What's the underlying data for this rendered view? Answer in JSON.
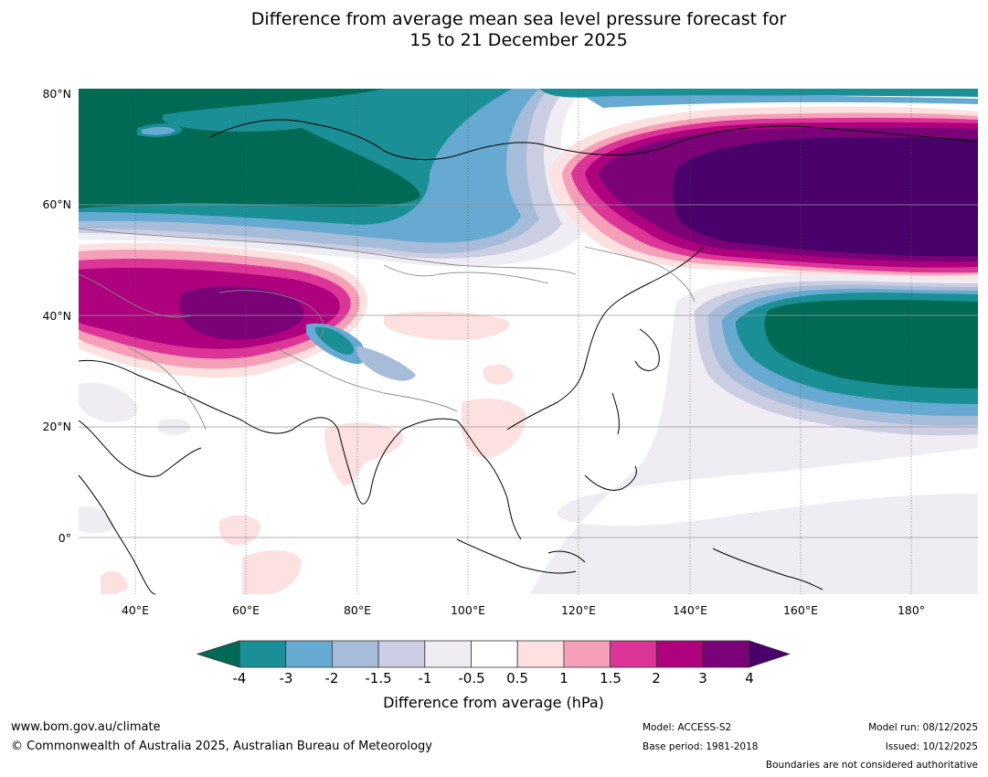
{
  "title": {
    "line1": "Difference from average mean sea level pressure forecast for",
    "line2": "15 to 21 December 2025"
  },
  "map": {
    "lat_labels": [
      "80°N",
      "60°N",
      "40°N",
      "20°N",
      "0°"
    ],
    "lon_labels": [
      "40°E",
      "60°E",
      "80°E",
      "100°E",
      "120°E",
      "140°E",
      "160°E",
      "180°"
    ],
    "lon_range": [
      30,
      192
    ],
    "lat_range": [
      -10,
      80
    ]
  },
  "colorbar": {
    "ticks": [
      "-4",
      "-3",
      "-2",
      "-1.5",
      "-1",
      "-0.5",
      "0.5",
      "1",
      "1.5",
      "2",
      "3",
      "4"
    ],
    "colors": [
      "#006a55",
      "#1b8f96",
      "#66a9d1",
      "#a6bcd9",
      "#cbcde3",
      "#f0ecf3",
      "#ffffff",
      "#fde0e0",
      "#f5a0b8",
      "#dd3497",
      "#ae017e",
      "#7a0177",
      "#49006a"
    ],
    "label": "Difference from average (hPa)"
  },
  "footer": {
    "website": "www.bom.gov.au/climate",
    "copyright": "© Commonwealth of Australia 2025, Australian Bureau of Meteorology",
    "model": "Model: ACCESS-S2",
    "base_period": "Base period: 1981-2018",
    "model_run": "Model run: 08/12/2025",
    "issued": "Issued: 10/12/2025",
    "boundaries": "Boundaries are not considered authoritative"
  }
}
